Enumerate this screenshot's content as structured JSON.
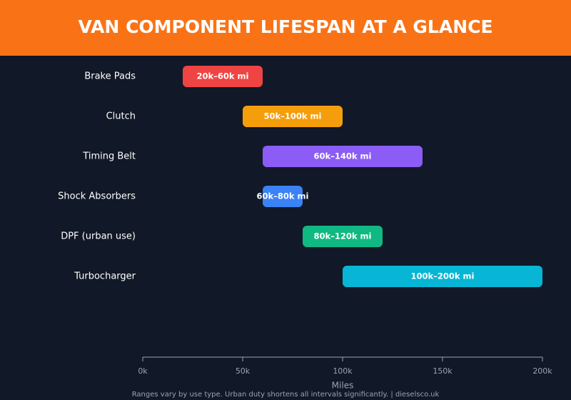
{
  "chart_data": {
    "type": "range-bar",
    "title": "VAN COMPONENT LIFESPAN AT A GLANCE",
    "categories": [
      "Brake Pads",
      "Clutch",
      "Timing Belt",
      "Shock Absorbers",
      "DPF (urban use)",
      "Turbocharger"
    ],
    "starts": [
      20000,
      50000,
      60000,
      60000,
      80000,
      100000
    ],
    "ends": [
      60000,
      100000,
      140000,
      80000,
      120000,
      200000
    ],
    "value_labels": [
      "20k–60k mi",
      "50k–100k mi",
      "60k–140k mi",
      "60k–80k mi",
      "80k–120k mi",
      "100k–200k mi"
    ],
    "colors": [
      "#ef4444",
      "#f59e0b",
      "#8b5cf6",
      "#3b82f6",
      "#10b981",
      "#06b6d4"
    ],
    "xlim": [
      0,
      200000
    ],
    "xticks": [
      {
        "value": 0,
        "label": "0k"
      },
      {
        "value": 50000,
        "label": "50k"
      },
      {
        "value": 100000,
        "label": "100k"
      },
      {
        "value": 150000,
        "label": "150k"
      },
      {
        "value": 200000,
        "label": "200k"
      }
    ],
    "xlabel": "Miles",
    "note": "Ranges vary by use type. Urban duty shortens all intervals significantly. | dieselsco.uk"
  }
}
